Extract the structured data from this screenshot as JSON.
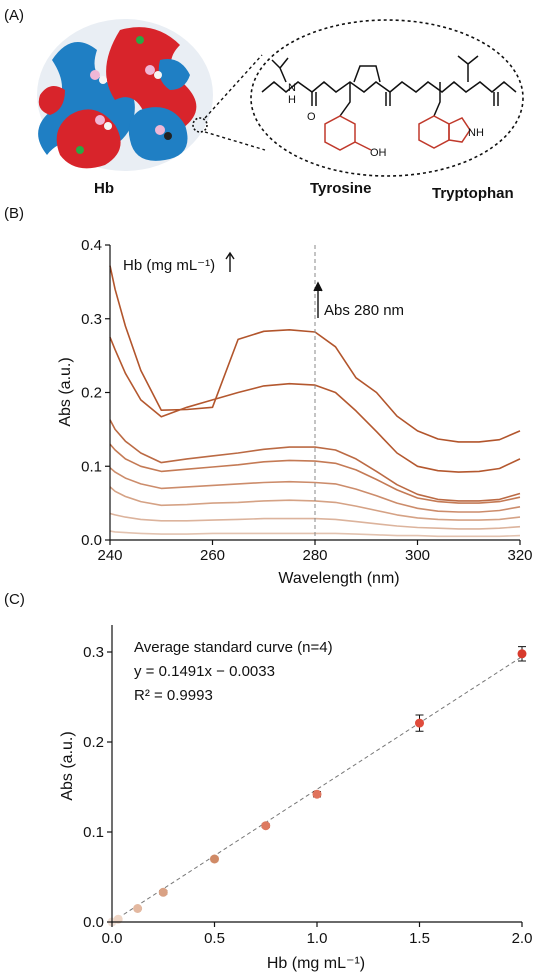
{
  "panel_a": {
    "label": "(A)",
    "protein_label": "Hb",
    "residue_labels": [
      "Tyrosine",
      "Tryptophan"
    ],
    "atom_labels": [
      "H",
      "N",
      "O",
      "OH",
      "NH"
    ]
  },
  "chart_data": [
    {
      "panel": "(B)",
      "type": "line",
      "title": "",
      "xlabel": "Wavelength (nm)",
      "ylabel": "Abs (a.u.)",
      "xlim": [
        240,
        320
      ],
      "ylim": [
        0.0,
        0.4
      ],
      "xticks": [
        "240",
        "260",
        "280",
        "300",
        "320"
      ],
      "yticks": [
        "0.0",
        "0.1",
        "0.2",
        "0.3",
        "0.4"
      ],
      "grid": false,
      "legend": "none",
      "annotations": {
        "trend": "Hb (mg mL⁻¹)",
        "marker": "Abs 280 nm",
        "marker_x": 280
      },
      "x": [
        240,
        241,
        243,
        246,
        250,
        255,
        260,
        265,
        270,
        275,
        280,
        284,
        288,
        292,
        296,
        300,
        304,
        308,
        312,
        316,
        320
      ],
      "series": [
        {
          "color": "#b2552c",
          "values": [
            0.372,
            0.34,
            0.29,
            0.23,
            0.176,
            0.177,
            0.18,
            0.272,
            0.283,
            0.285,
            0.282,
            0.262,
            0.22,
            0.2,
            0.168,
            0.148,
            0.137,
            0.133,
            0.133,
            0.136,
            0.148
          ]
        },
        {
          "color": "#b4582f",
          "values": [
            0.275,
            0.258,
            0.226,
            0.19,
            0.167,
            0.18,
            0.19,
            0.2,
            0.209,
            0.212,
            0.21,
            0.2,
            0.175,
            0.147,
            0.118,
            0.1,
            0.094,
            0.092,
            0.093,
            0.097,
            0.11
          ]
        },
        {
          "color": "#bb6a44",
          "values": [
            0.163,
            0.15,
            0.134,
            0.118,
            0.105,
            0.11,
            0.114,
            0.118,
            0.123,
            0.126,
            0.126,
            0.122,
            0.11,
            0.093,
            0.075,
            0.062,
            0.055,
            0.053,
            0.053,
            0.055,
            0.063
          ]
        },
        {
          "color": "#c47a55",
          "values": [
            0.13,
            0.122,
            0.11,
            0.1,
            0.093,
            0.096,
            0.099,
            0.102,
            0.106,
            0.108,
            0.107,
            0.104,
            0.095,
            0.082,
            0.068,
            0.057,
            0.052,
            0.05,
            0.05,
            0.052,
            0.058
          ]
        },
        {
          "color": "#cc8c6b",
          "values": [
            0.098,
            0.092,
            0.084,
            0.076,
            0.07,
            0.072,
            0.074,
            0.076,
            0.078,
            0.079,
            0.078,
            0.076,
            0.069,
            0.06,
            0.05,
            0.043,
            0.039,
            0.038,
            0.038,
            0.04,
            0.045
          ]
        },
        {
          "color": "#d5a285",
          "values": [
            0.072,
            0.066,
            0.059,
            0.052,
            0.047,
            0.048,
            0.05,
            0.051,
            0.053,
            0.054,
            0.053,
            0.051,
            0.046,
            0.04,
            0.034,
            0.03,
            0.028,
            0.027,
            0.027,
            0.028,
            0.031
          ]
        },
        {
          "color": "#dcb39c",
          "values": [
            0.036,
            0.034,
            0.031,
            0.028,
            0.026,
            0.026,
            0.027,
            0.028,
            0.029,
            0.029,
            0.029,
            0.028,
            0.025,
            0.022,
            0.019,
            0.017,
            0.016,
            0.015,
            0.015,
            0.016,
            0.018
          ]
        },
        {
          "color": "#e3c3b0",
          "values": [
            0.012,
            0.011,
            0.01,
            0.009,
            0.008,
            0.008,
            0.009,
            0.009,
            0.009,
            0.009,
            0.009,
            0.009,
            0.008,
            0.007,
            0.006,
            0.006,
            0.005,
            0.005,
            0.005,
            0.005,
            0.006
          ]
        }
      ]
    },
    {
      "panel": "(C)",
      "type": "scatter",
      "title": "",
      "xlabel": "Hb (mg mL⁻¹)",
      "ylabel": "Abs (a.u.)",
      "xlim": [
        0.0,
        2.0
      ],
      "ylim": [
        0.0,
        0.33
      ],
      "xticks": [
        "0.0",
        "0.5",
        "1.0",
        "1.5",
        "2.0"
      ],
      "yticks": [
        "0.0",
        "0.1",
        "0.2",
        "0.3"
      ],
      "grid": false,
      "legend": "none",
      "annotations": {
        "line1": "Average standard curve (n=4)",
        "line2": "y = 0.1491x − 0.0033",
        "line3": "R² = 0.9993"
      },
      "fit": {
        "slope": 0.1491,
        "intercept": -0.0033
      },
      "points": [
        {
          "x": 0.0,
          "y": 0.0,
          "err": 0.001,
          "color": "#f2e2d8"
        },
        {
          "x": 0.03,
          "y": 0.003,
          "err": 0.001,
          "color": "#efd6c6"
        },
        {
          "x": 0.125,
          "y": 0.015,
          "err": 0.001,
          "color": "#e3b8a0"
        },
        {
          "x": 0.25,
          "y": 0.033,
          "err": 0.002,
          "color": "#d9a184"
        },
        {
          "x": 0.5,
          "y": 0.07,
          "err": 0.002,
          "color": "#d08a66"
        },
        {
          "x": 0.75,
          "y": 0.107,
          "err": 0.002,
          "color": "#dd7a60"
        },
        {
          "x": 1.0,
          "y": 0.142,
          "err": 0.003,
          "color": "#e0735c"
        },
        {
          "x": 1.5,
          "y": 0.221,
          "err": 0.009,
          "color": "#e04c3c"
        },
        {
          "x": 2.0,
          "y": 0.298,
          "err": 0.008,
          "color": "#d83a2c"
        }
      ]
    }
  ]
}
